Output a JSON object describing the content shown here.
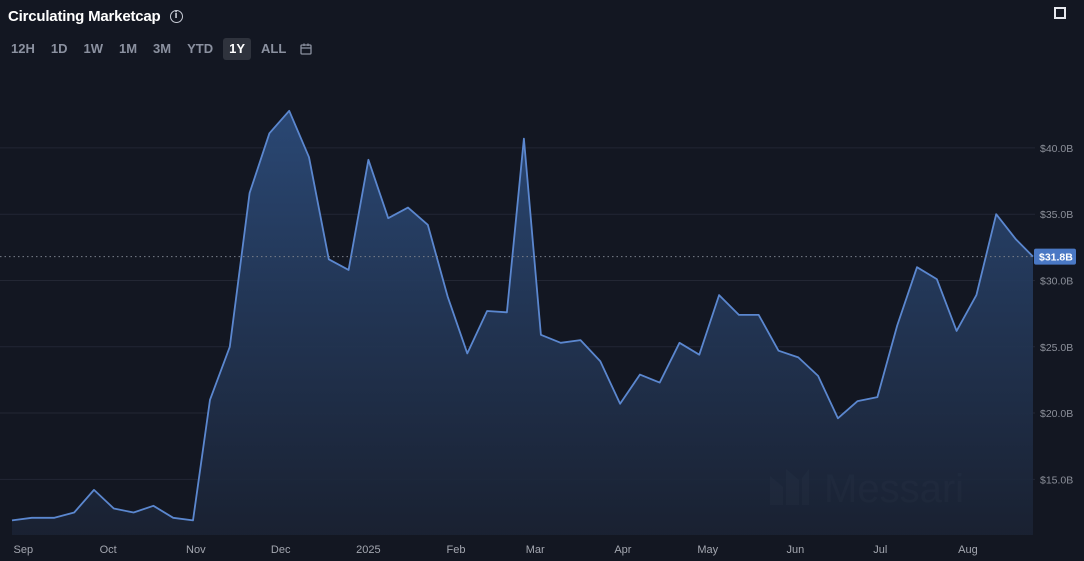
{
  "header": {
    "title": "Circulating Marketcap",
    "info_icon": "info-icon",
    "expand_icon": "expand-icon"
  },
  "ranges": [
    {
      "label": "12H",
      "active": false
    },
    {
      "label": "1D",
      "active": false
    },
    {
      "label": "1W",
      "active": false
    },
    {
      "label": "1M",
      "active": false
    },
    {
      "label": "3M",
      "active": false
    },
    {
      "label": "YTD",
      "active": false
    },
    {
      "label": "1Y",
      "active": true
    },
    {
      "label": "ALL",
      "active": false
    }
  ],
  "calendar_icon": "calendar-icon",
  "watermark": "Messari",
  "colors": {
    "background": "#131722",
    "line": "#5b87cf",
    "fill_top": "#2b4a78",
    "fill_bottom": "#1a2233",
    "current_badge": "#4a78c4"
  },
  "chart_data": {
    "type": "area",
    "title": "Circulating Marketcap",
    "xlabel": "",
    "ylabel": "",
    "ylim": [
      10.8,
      45.5
    ],
    "y_ticks": [
      "$15.0B",
      "$20.0B",
      "$25.0B",
      "$30.0B",
      "$35.0B",
      "$40.0B"
    ],
    "y_tick_values": [
      15,
      20,
      25,
      30,
      35,
      40
    ],
    "x_ticks": [
      "Sep",
      "Oct",
      "Nov",
      "Dec",
      "2025",
      "Feb",
      "Mar",
      "Apr",
      "May",
      "Jun",
      "Jul",
      "Aug"
    ],
    "x_tick_dates": [
      "2024-09-01",
      "2024-10-01",
      "2024-11-01",
      "2024-12-01",
      "2025-01-01",
      "2025-02-01",
      "2025-03-01",
      "2025-04-01",
      "2025-05-01",
      "2025-06-01",
      "2025-07-01",
      "2025-08-01"
    ],
    "grid": true,
    "current_value": 31.8,
    "current_label": "$31.8B",
    "series": [
      {
        "units": "billion USD",
        "points": [
          [
            "2024-08-28",
            11.9
          ],
          [
            "2024-09-04",
            12.1
          ],
          [
            "2024-09-12",
            12.1
          ],
          [
            "2024-09-19",
            12.5
          ],
          [
            "2024-09-26",
            14.2
          ],
          [
            "2024-10-03",
            12.8
          ],
          [
            "2024-10-10",
            12.5
          ],
          [
            "2024-10-17",
            13.0
          ],
          [
            "2024-10-24",
            12.1
          ],
          [
            "2024-10-31",
            11.9
          ],
          [
            "2024-11-06",
            21.0
          ],
          [
            "2024-11-13",
            25.0
          ],
          [
            "2024-11-20",
            36.6
          ],
          [
            "2024-11-27",
            41.1
          ],
          [
            "2024-12-04",
            42.8
          ],
          [
            "2024-12-11",
            39.3
          ],
          [
            "2024-12-18",
            31.6
          ],
          [
            "2024-12-25",
            30.8
          ],
          [
            "2025-01-01",
            39.1
          ],
          [
            "2025-01-08",
            34.7
          ],
          [
            "2025-01-15",
            35.5
          ],
          [
            "2025-01-22",
            34.2
          ],
          [
            "2025-01-29",
            28.8
          ],
          [
            "2025-02-05",
            24.5
          ],
          [
            "2025-02-12",
            27.7
          ],
          [
            "2025-02-19",
            27.6
          ],
          [
            "2025-02-25",
            40.7
          ],
          [
            "2025-03-03",
            25.9
          ],
          [
            "2025-03-10",
            25.3
          ],
          [
            "2025-03-17",
            25.5
          ],
          [
            "2025-03-24",
            23.9
          ],
          [
            "2025-03-31",
            20.7
          ],
          [
            "2025-04-07",
            22.9
          ],
          [
            "2025-04-14",
            22.3
          ],
          [
            "2025-04-21",
            25.3
          ],
          [
            "2025-04-28",
            24.4
          ],
          [
            "2025-05-05",
            28.9
          ],
          [
            "2025-05-12",
            27.4
          ],
          [
            "2025-05-19",
            27.4
          ],
          [
            "2025-05-26",
            24.7
          ],
          [
            "2025-06-02",
            24.2
          ],
          [
            "2025-06-09",
            22.8
          ],
          [
            "2025-06-16",
            19.6
          ],
          [
            "2025-06-23",
            20.9
          ],
          [
            "2025-06-30",
            21.2
          ],
          [
            "2025-07-07",
            26.6
          ],
          [
            "2025-07-14",
            31.0
          ],
          [
            "2025-07-21",
            30.1
          ],
          [
            "2025-07-28",
            26.2
          ],
          [
            "2025-08-04",
            28.9
          ],
          [
            "2025-08-11",
            35.0
          ],
          [
            "2025-08-18",
            33.1
          ],
          [
            "2025-08-24",
            31.8
          ]
        ]
      }
    ]
  }
}
